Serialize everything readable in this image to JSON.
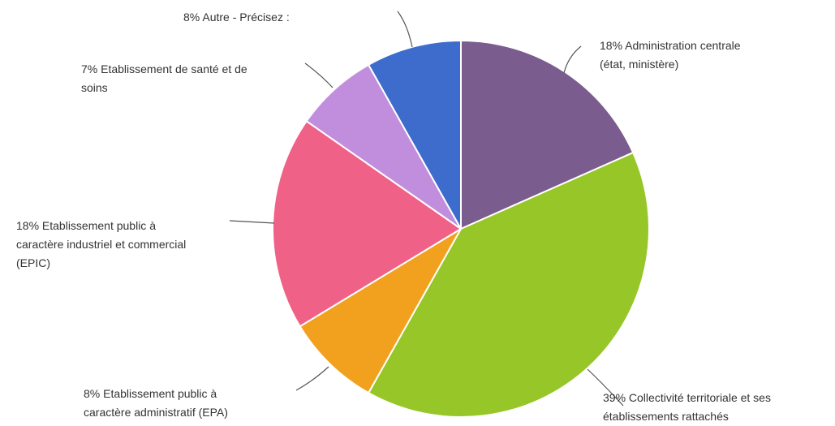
{
  "chart_data": {
    "type": "pie",
    "title": "",
    "colors": [
      "#7b5c8e",
      "#97c628",
      "#f2a11f",
      "#f06187",
      "#c18edd",
      "#3d6ccc"
    ],
    "slices": [
      {
        "label": "Administration centrale (état, ministère)",
        "value": 18,
        "label_lines": [
          "18% Administration centrale",
          "(état, ministère)"
        ]
      },
      {
        "label": "Collectivité territoriale et ses établissements rattachés",
        "value": 39,
        "label_lines": [
          "39% Collectivité territoriale et ses",
          "établissements rattachés"
        ]
      },
      {
        "label": "Etablissement public à caractère administratif (EPA)",
        "value": 8,
        "label_lines": [
          "8% Etablissement public à",
          "caractère administratif (EPA)"
        ]
      },
      {
        "label": "Etablissement public à caractère industriel et commercial (EPIC)",
        "value": 18,
        "label_lines": [
          "18% Etablissement public à",
          "caractère industriel et commercial",
          "(EPIC)"
        ]
      },
      {
        "label": "Etablissement de santé et de soins",
        "value": 7,
        "label_lines": [
          "7% Etablissement de santé et de",
          "soins"
        ]
      },
      {
        "label": "Autre - Précisez :",
        "value": 8,
        "label_lines": [
          "8% Autre - Précisez :"
        ]
      }
    ]
  }
}
